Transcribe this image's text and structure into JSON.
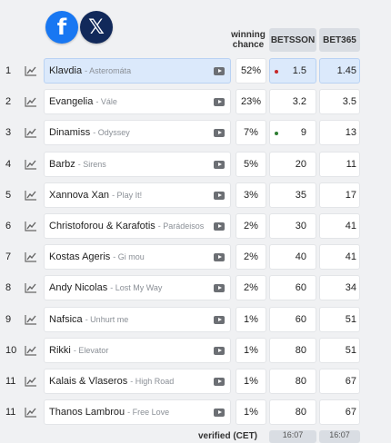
{
  "social": {
    "facebook_glyph": "f",
    "x_glyph": "𝕏"
  },
  "header": {
    "chance_label": "winning\nchance",
    "book1": "BETSSON",
    "book2": "BET365"
  },
  "rows": [
    {
      "rank": "1",
      "artist": "Klavdia",
      "song": "- Asteromáta",
      "chance": "52%",
      "b1": "1.5",
      "b2": "1.45",
      "dot": "red",
      "highlight": true
    },
    {
      "rank": "2",
      "artist": "Evangelia",
      "song": "- Vále",
      "chance": "23%",
      "b1": "3.2",
      "b2": "3.5",
      "dot": "",
      "highlight": false
    },
    {
      "rank": "3",
      "artist": "Dinamiss",
      "song": "- Odyssey",
      "chance": "7%",
      "b1": "9",
      "b2": "13",
      "dot": "green",
      "highlight": false
    },
    {
      "rank": "4",
      "artist": "Barbz",
      "song": "- Sirens",
      "chance": "5%",
      "b1": "20",
      "b2": "11",
      "dot": "",
      "highlight": false
    },
    {
      "rank": "5",
      "artist": "Xannova Xan",
      "song": "- Play It!",
      "chance": "3%",
      "b1": "35",
      "b2": "17",
      "dot": "",
      "highlight": false
    },
    {
      "rank": "6",
      "artist": "Christoforou & Karafotis",
      "song": "- Parádeisos",
      "chance": "2%",
      "b1": "30",
      "b2": "41",
      "dot": "",
      "highlight": false
    },
    {
      "rank": "7",
      "artist": "Kostas Ageris",
      "song": "- Gi mou",
      "chance": "2%",
      "b1": "40",
      "b2": "41",
      "dot": "",
      "highlight": false
    },
    {
      "rank": "8",
      "artist": "Andy Nicolas",
      "song": "- Lost My Way",
      "chance": "2%",
      "b1": "60",
      "b2": "34",
      "dot": "",
      "highlight": false
    },
    {
      "rank": "9",
      "artist": "Nafsica",
      "song": "- Unhurt me",
      "chance": "1%",
      "b1": "60",
      "b2": "51",
      "dot": "",
      "highlight": false
    },
    {
      "rank": "10",
      "artist": "Rikki",
      "song": "- Elevator",
      "chance": "1%",
      "b1": "80",
      "b2": "51",
      "dot": "",
      "highlight": false
    },
    {
      "rank": "11",
      "artist": "Kalais & Vlaseros",
      "song": "- High Road",
      "chance": "1%",
      "b1": "80",
      "b2": "67",
      "dot": "",
      "highlight": false
    },
    {
      "rank": "11",
      "artist": "Thanos Lambrou",
      "song": "- Free Love",
      "chance": "1%",
      "b1": "80",
      "b2": "67",
      "dot": "",
      "highlight": false
    }
  ],
  "footer": {
    "verified_label": "verified (CET)",
    "book1_time": "16:07",
    "book2_time": "16:07"
  },
  "icons": {
    "trend": "trend-chart-icon",
    "play": "youtube-play-icon"
  },
  "colors": {
    "highlight": "#dbe9fb",
    "facebook": "#1877f2",
    "x": "#11295a"
  }
}
